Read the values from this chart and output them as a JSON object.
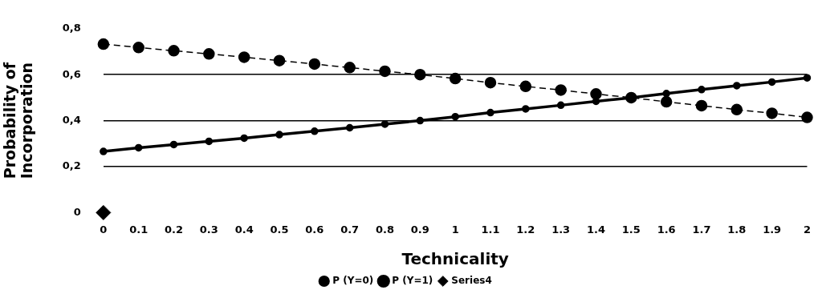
{
  "chart_data": {
    "type": "line",
    "xlabel": "Technicality",
    "ylabel": "Probability of Incorporation",
    "x": [
      0,
      0.1,
      0.2,
      0.3,
      0.4,
      0.5,
      0.6,
      0.7,
      0.8,
      0.9,
      1,
      1.1,
      1.2,
      1.3,
      1.4,
      1.5,
      1.6,
      1.7,
      1.8,
      1.9,
      2
    ],
    "series": [
      {
        "name": "P (Y=0)",
        "color": "#000000",
        "line_style": "dashed",
        "marker": "circle",
        "values": [
          0.733,
          0.718,
          0.704,
          0.69,
          0.676,
          0.661,
          0.646,
          0.631,
          0.615,
          0.6,
          0.583,
          0.565,
          0.549,
          0.533,
          0.516,
          0.5,
          0.482,
          0.465,
          0.448,
          0.432,
          0.414
        ]
      },
      {
        "name": "P (Y=1)",
        "color": "#000000",
        "line_style": "solid",
        "marker": "circle",
        "values": [
          0.266,
          0.282,
          0.296,
          0.31,
          0.324,
          0.339,
          0.354,
          0.369,
          0.385,
          0.4,
          0.417,
          0.435,
          0.451,
          0.467,
          0.484,
          0.5,
          0.518,
          0.535,
          0.552,
          0.568,
          0.586
        ]
      },
      {
        "name": "Series4",
        "type": "scatter",
        "color": "#000000",
        "marker": "diamond",
        "x": [
          0
        ],
        "values": [
          0
        ]
      }
    ],
    "xlim": [
      0,
      2
    ],
    "xticks": [
      0,
      0.1,
      0.2,
      0.3,
      0.4,
      0.5,
      0.6,
      0.7,
      0.8,
      0.9,
      1,
      1.1,
      1.2,
      1.3,
      1.4,
      1.5,
      1.6,
      1.7,
      1.8,
      1.9,
      2
    ],
    "ylim": [
      0,
      0.8
    ],
    "yticks": [
      {
        "value": 0,
        "label": "0"
      },
      {
        "value": 0.2,
        "label": "0,2"
      },
      {
        "value": 0.4,
        "label": "0,4"
      },
      {
        "value": 0.6,
        "label": "0,6"
      },
      {
        "value": 0.8,
        "label": "0,8"
      }
    ],
    "grid": "y",
    "legend": "bottom"
  }
}
